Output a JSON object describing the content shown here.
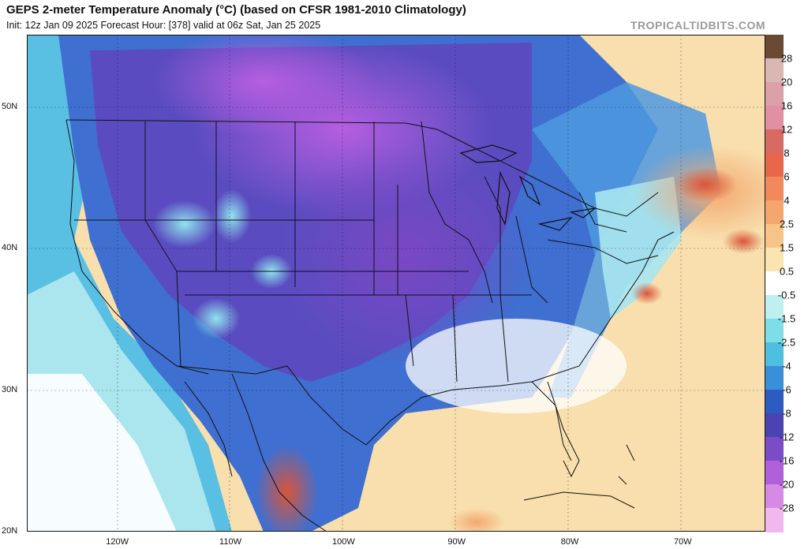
{
  "header": {
    "title": "GEPS 2-meter Temperature Anomaly (°C) (based on CFSR 1981-2010 Climatology)",
    "subtitle": "Init: 12z Jan 09 2025   Forecast Hour: [378]   valid at 06z Sat, Jan 25 2025",
    "brand": "TROPICALTIDBITS.COM"
  },
  "map": {
    "lat_labels": [
      {
        "label": "50N",
        "lat": 50
      },
      {
        "label": "40N",
        "lat": 40
      },
      {
        "label": "30N",
        "lat": 30
      },
      {
        "label": "20N",
        "lat": 20
      }
    ],
    "lon_labels": [
      {
        "label": "120W",
        "lon": -120
      },
      {
        "label": "110W",
        "lon": -110
      },
      {
        "label": "100W",
        "lon": -100
      },
      {
        "label": "90W",
        "lon": -90
      },
      {
        "label": "80W",
        "lon": -80
      },
      {
        "label": "70W",
        "lon": -70
      }
    ]
  },
  "colorbar": {
    "labels": [
      "28",
      "20",
      "16",
      "12",
      "8",
      "6",
      "4",
      "2.5",
      "1.5",
      "0.5",
      "-0.5",
      "-1.5",
      "-2.5",
      "-4",
      "-6",
      "-8",
      "-12",
      "-16",
      "-20",
      "-28"
    ],
    "colors": [
      "#6b4a34",
      "#d9b8b4",
      "#dca0a8",
      "#e090a2",
      "#d76a62",
      "#e8664a",
      "#f08a5c",
      "#f3a66e",
      "#f6c487",
      "#fae4b0",
      "#ffffff",
      "#bff0f0",
      "#7fdde8",
      "#4fbfe0",
      "#3a90d8",
      "#2c5cbf",
      "#4b44b0",
      "#7c4cc6",
      "#b060d8",
      "#d68ae6",
      "#f2b8ee"
    ]
  }
}
